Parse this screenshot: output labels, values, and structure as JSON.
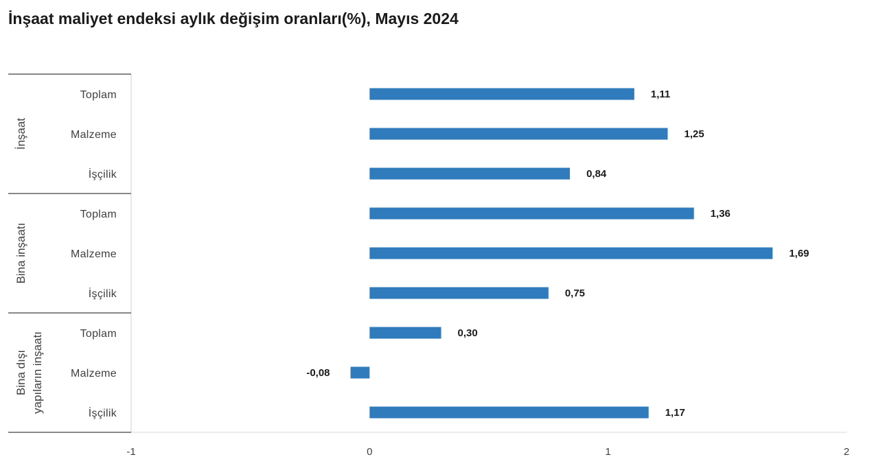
{
  "chart_data": {
    "type": "bar",
    "orientation": "horizontal",
    "title": "İnşaat maliyet endeksi aylık değişim oranları(%), Mayıs 2024",
    "xlim": [
      -1,
      2
    ],
    "x_ticks": [
      "-1",
      "0",
      "1",
      "2"
    ],
    "x_tick_values": [
      -1,
      0,
      1,
      2
    ],
    "bar_color": "#2F7BBB",
    "groups": [
      {
        "name": "İnşaat",
        "name_lines": [
          "İnşaat"
        ],
        "categories": [
          {
            "label": "Toplam",
            "value": 1.11,
            "value_label": "1,11"
          },
          {
            "label": "Malzeme",
            "value": 1.25,
            "value_label": "1,25"
          },
          {
            "label": "İşçilik",
            "value": 0.84,
            "value_label": "0,84"
          }
        ]
      },
      {
        "name": "Bina inşaatı",
        "name_lines": [
          "Bina inşaatı"
        ],
        "categories": [
          {
            "label": "Toplam",
            "value": 1.36,
            "value_label": "1,36"
          },
          {
            "label": "Malzeme",
            "value": 1.69,
            "value_label": "1,69"
          },
          {
            "label": "İşçilik",
            "value": 0.75,
            "value_label": "0,75"
          }
        ]
      },
      {
        "name": "Bina dışı yapıların inşaatı",
        "name_lines": [
          "Bina dışı",
          "yapıların inşaatı"
        ],
        "categories": [
          {
            "label": "Toplam",
            "value": 0.3,
            "value_label": "0,30"
          },
          {
            "label": "Malzeme",
            "value": -0.08,
            "value_label": "-0,08"
          },
          {
            "label": "İşçilik",
            "value": 1.17,
            "value_label": "1,17"
          }
        ]
      }
    ]
  }
}
